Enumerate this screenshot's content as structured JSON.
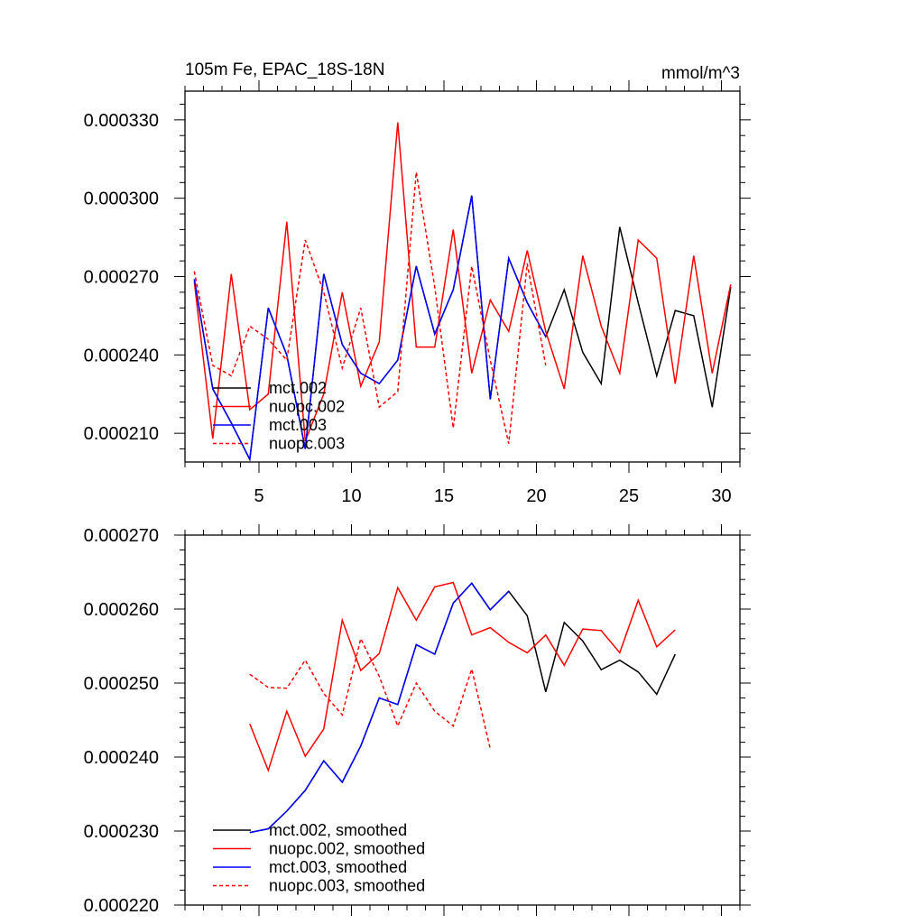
{
  "chart_data": [
    {
      "type": "line",
      "title": "105m Fe, EPAC_18S-18N",
      "units": "mmol/m^3",
      "xlim": [
        1,
        31
      ],
      "ylim": [
        0.000199,
        0.000341
      ],
      "xticks": [
        5,
        10,
        15,
        20,
        25,
        30
      ],
      "xtick_labels": [
        "5",
        "10",
        "15",
        "20",
        "25",
        "30"
      ],
      "yticks": [
        0.00021,
        0.00024,
        0.00027,
        0.0003,
        0.00033
      ],
      "ytick_labels": [
        "0.000210",
        "0.000240",
        "0.000270",
        "0.000300",
        "0.000330"
      ],
      "legend_position": "bottom-left",
      "series": [
        {
          "name": "mct.002",
          "color": "#000000",
          "dash": "solid",
          "x": [
            1.5,
            2.5,
            3.5,
            4.5,
            5.5,
            6.5,
            7.5,
            8.5,
            9.5,
            10.5,
            11.5,
            12.5,
            13.5,
            14.5,
            15.5,
            16.5,
            17.5,
            18.5,
            19.5,
            20.5,
            21.5,
            22.5,
            23.5,
            24.5,
            25.5,
            26.5,
            27.5,
            28.5,
            29.5,
            30.5
          ],
          "y": [
            0.000269,
            0.000227,
            0.000214,
            0.0002,
            0.000258,
            0.00024,
            0.000204,
            0.000271,
            0.000244,
            0.000233,
            0.000229,
            0.000238,
            0.000274,
            0.000248,
            0.000265,
            0.000301,
            0.000223,
            0.000277,
            0.00026,
            0.000247,
            0.000265,
            0.000241,
            0.000229,
            0.000289,
            0.00026,
            0.000232,
            0.000257,
            0.000255,
            0.00022,
            0.000266
          ]
        },
        {
          "name": "nuopc.002",
          "color": "#ff0000",
          "dash": "solid",
          "x": [
            1.5,
            2.5,
            3.5,
            4.5,
            5.5,
            6.5,
            7.5,
            8.5,
            9.5,
            10.5,
            11.5,
            12.5,
            13.5,
            14.5,
            15.5,
            16.5,
            17.5,
            18.5,
            19.5,
            20.5,
            21.5,
            22.5,
            23.5,
            24.5,
            25.5,
            26.5,
            27.5,
            28.5,
            29.5,
            30.5
          ],
          "y": [
            0.000268,
            0.000208,
            0.000271,
            0.000219,
            0.000225,
            0.000291,
            0.000207,
            0.000225,
            0.000264,
            0.000228,
            0.000245,
            0.000329,
            0.000243,
            0.000243,
            0.000288,
            0.000233,
            0.000261,
            0.000249,
            0.00028,
            0.000249,
            0.000227,
            0.000278,
            0.000251,
            0.000233,
            0.000284,
            0.000277,
            0.000229,
            0.000278,
            0.000233,
            0.000267
          ]
        },
        {
          "name": "mct.003",
          "color": "#0000ff",
          "dash": "solid",
          "x": [
            1.5,
            2.5,
            3.5,
            4.5,
            5.5,
            6.5,
            7.5,
            8.5,
            9.5,
            10.5,
            11.5,
            12.5,
            13.5,
            14.5,
            15.5,
            16.5,
            17.5,
            18.5,
            19.5,
            20.5
          ],
          "y": [
            0.000269,
            0.000227,
            0.000214,
            0.0002,
            0.000258,
            0.00024,
            0.000204,
            0.000271,
            0.000244,
            0.000233,
            0.000229,
            0.000238,
            0.000274,
            0.000248,
            0.000265,
            0.000301,
            0.000223,
            0.000277,
            0.00026,
            0.000247
          ]
        },
        {
          "name": "nuopc.003",
          "color": "#ff0000",
          "dash": "dashed",
          "x": [
            1.5,
            2.5,
            3.5,
            4.5,
            5.5,
            6.5,
            7.5,
            8.5,
            9.5,
            10.5,
            11.5,
            12.5,
            13.5,
            14.5,
            15.5,
            16.5,
            17.5,
            18.5,
            19.5,
            20.5
          ],
          "y": [
            0.000272,
            0.000236,
            0.000232,
            0.000251,
            0.000246,
            0.000238,
            0.000284,
            0.000264,
            0.000235,
            0.000258,
            0.00022,
            0.000226,
            0.00031,
            0.000266,
            0.000212,
            0.000274,
            0.000238,
            0.000206,
            0.000275,
            0.000236
          ]
        }
      ]
    },
    {
      "type": "line",
      "title": "",
      "xlim": [
        1,
        31
      ],
      "ylim": [
        0.00022,
        0.00027
      ],
      "xticks": [
        5,
        10,
        15,
        20,
        25,
        30
      ],
      "yticks": [
        0.00022,
        0.00023,
        0.00024,
        0.00025,
        0.00026,
        0.00027
      ],
      "ytick_labels": [
        "0.000220",
        "0.000230",
        "0.000240",
        "0.000250",
        "0.000260",
        "0.000270"
      ],
      "legend_position": "bottom-left",
      "series": [
        {
          "name": "mct.002, smoothed",
          "color": "#000000",
          "dash": "solid",
          "x": [
            4.5,
            5.5,
            6.5,
            7.5,
            8.5,
            9.5,
            10.5,
            11.5,
            12.5,
            13.5,
            14.5,
            15.5,
            16.5,
            17.5,
            18.5,
            19.5,
            20.5,
            21.5,
            22.5,
            23.5,
            24.5,
            25.5,
            26.5,
            27.5
          ],
          "y": [
            0.0002298,
            0.0002303,
            0.0002327,
            0.0002355,
            0.0002395,
            0.0002366,
            0.0002415,
            0.000248,
            0.0002471,
            0.0002552,
            0.0002539,
            0.0002608,
            0.0002635,
            0.0002599,
            0.0002624,
            0.0002591,
            0.0002488,
            0.0002582,
            0.0002557,
            0.0002518,
            0.0002531,
            0.0002515,
            0.0002485,
            0.0002539
          ]
        },
        {
          "name": "nuopc.002, smoothed",
          "color": "#ff0000",
          "dash": "solid",
          "x": [
            4.5,
            5.5,
            6.5,
            7.5,
            8.5,
            9.5,
            10.5,
            11.5,
            12.5,
            13.5,
            14.5,
            15.5,
            16.5,
            17.5,
            18.5,
            19.5,
            20.5,
            21.5,
            22.5,
            23.5,
            24.5,
            25.5,
            26.5,
            27.5
          ],
          "y": [
            0.0002445,
            0.0002382,
            0.0002462,
            0.0002401,
            0.0002438,
            0.0002585,
            0.0002517,
            0.000254,
            0.0002629,
            0.0002585,
            0.000263,
            0.0002636,
            0.0002565,
            0.0002575,
            0.0002555,
            0.0002541,
            0.0002565,
            0.0002524,
            0.0002573,
            0.0002571,
            0.0002541,
            0.0002612,
            0.0002549,
            0.0002572
          ]
        },
        {
          "name": "mct.003, smoothed",
          "color": "#0000ff",
          "dash": "solid",
          "x": [
            4.5,
            5.5,
            6.5,
            7.5,
            8.5,
            9.5,
            10.5,
            11.5,
            12.5,
            13.5,
            14.5,
            15.5,
            16.5,
            17.5,
            18.5
          ],
          "y": [
            0.0002298,
            0.0002303,
            0.0002327,
            0.0002355,
            0.0002395,
            0.0002366,
            0.0002415,
            0.000248,
            0.0002471,
            0.0002552,
            0.0002539,
            0.0002608,
            0.0002635,
            0.0002599,
            0.0002624
          ]
        },
        {
          "name": "nuopc.003, smoothed",
          "color": "#ff0000",
          "dash": "dashed",
          "x": [
            4.5,
            5.5,
            6.5,
            7.5,
            8.5,
            9.5,
            10.5,
            11.5,
            12.5,
            13.5,
            14.5,
            15.5,
            16.5,
            17.5
          ],
          "y": [
            0.0002512,
            0.0002494,
            0.0002493,
            0.0002531,
            0.0002486,
            0.0002457,
            0.000256,
            0.0002509,
            0.0002442,
            0.00025,
            0.0002462,
            0.0002442,
            0.0002519,
            0.0002411
          ]
        }
      ]
    }
  ]
}
